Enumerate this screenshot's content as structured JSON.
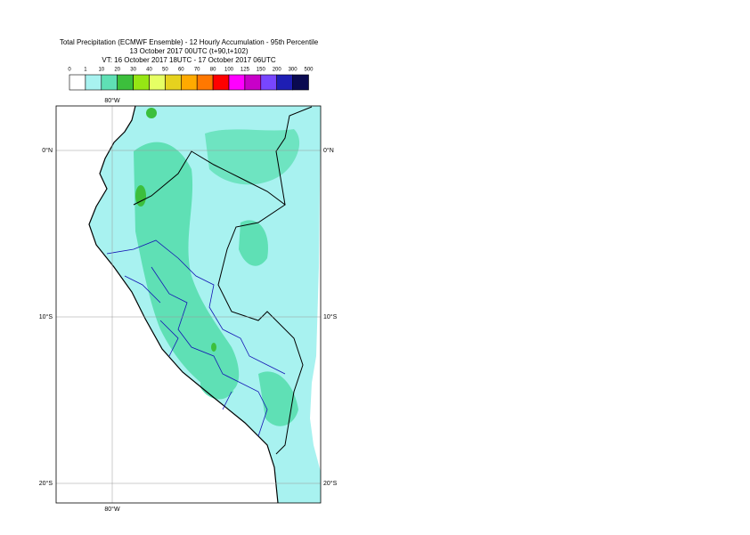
{
  "header": {
    "lines": [
      "Total Precipitation (ECMWF Ensemble) - 12 Hourly Accumulation - 95th Percentile",
      "13 October 2017 00UTC (t+90,t+102)",
      "VT: 16 October 2017 18UTC - 17 October 2017 06UTC"
    ]
  },
  "legend": {
    "levels": [
      0,
      1,
      10,
      20,
      30,
      40,
      50,
      60,
      70,
      80,
      100,
      125,
      150,
      200,
      300,
      500
    ],
    "colors": [
      "#ffffff",
      "#a8f2f0",
      "#5fe0b5",
      "#3cbf3c",
      "#96e614",
      "#e6ff64",
      "#e6d21e",
      "#ffaa00",
      "#ff7800",
      "#ff0000",
      "#ff00ff",
      "#c800c8",
      "#7846ff",
      "#1e1eb4",
      "#0a0a50"
    ]
  },
  "map": {
    "lat_labels": [
      "0°N",
      "10°S",
      "20°S"
    ],
    "lon_labels": [
      "80°W",
      "80°W"
    ]
  }
}
